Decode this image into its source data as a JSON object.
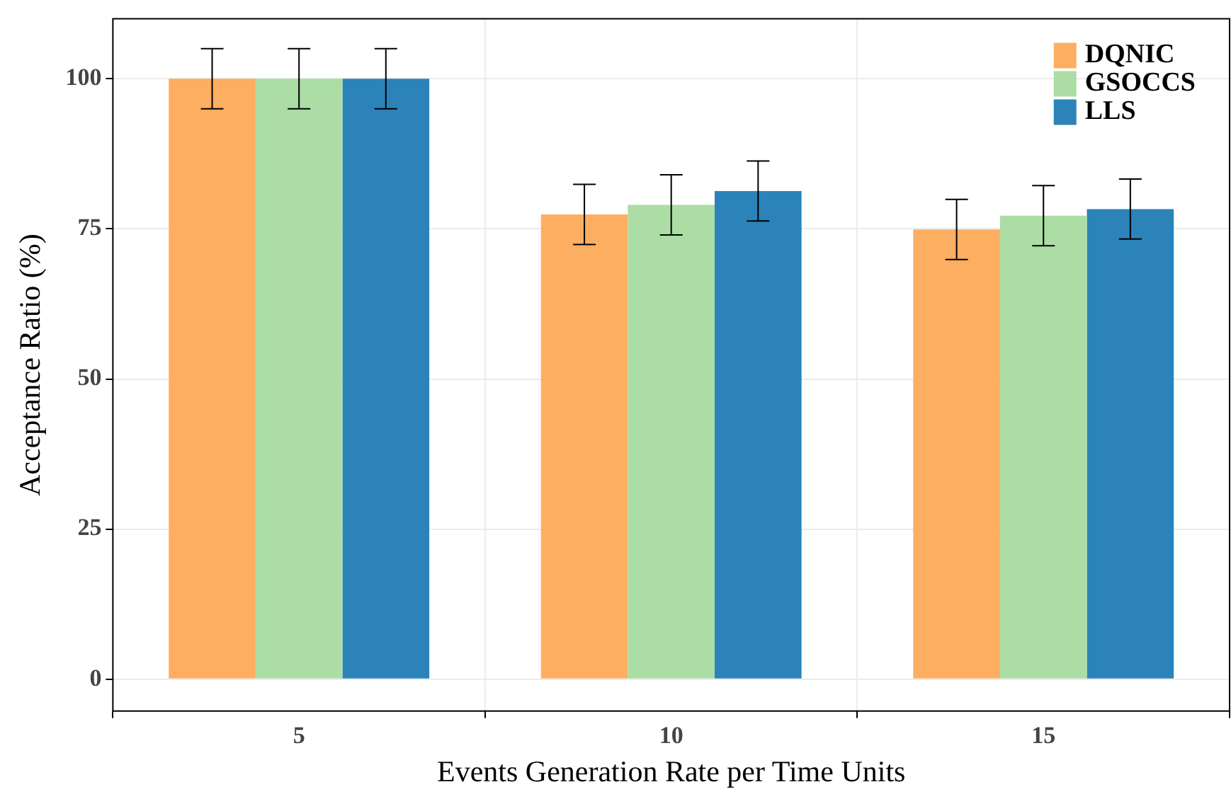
{
  "chart_data": {
    "type": "bar",
    "xlabel": "Events Generation Rate per Time Units",
    "ylabel": "Acceptance Ratio (%)",
    "categories": [
      "5",
      "10",
      "15"
    ],
    "series": [
      {
        "name": "DQNIC",
        "color": "#fdae61",
        "values": [
          100,
          77.4,
          74.9
        ],
        "errors": [
          5,
          5,
          5
        ]
      },
      {
        "name": "GSOCCS",
        "color": "#abdda4",
        "values": [
          100,
          79,
          77.2
        ],
        "errors": [
          5,
          5,
          5
        ]
      },
      {
        "name": "LLS",
        "color": "#2b83ba",
        "values": [
          100,
          81.3,
          78.3
        ],
        "errors": [
          5,
          5,
          5
        ]
      }
    ],
    "ylim": [
      -5.3,
      110
    ],
    "yticks": [
      0,
      25,
      50,
      75,
      100
    ],
    "grid": true,
    "legend": "top right"
  }
}
